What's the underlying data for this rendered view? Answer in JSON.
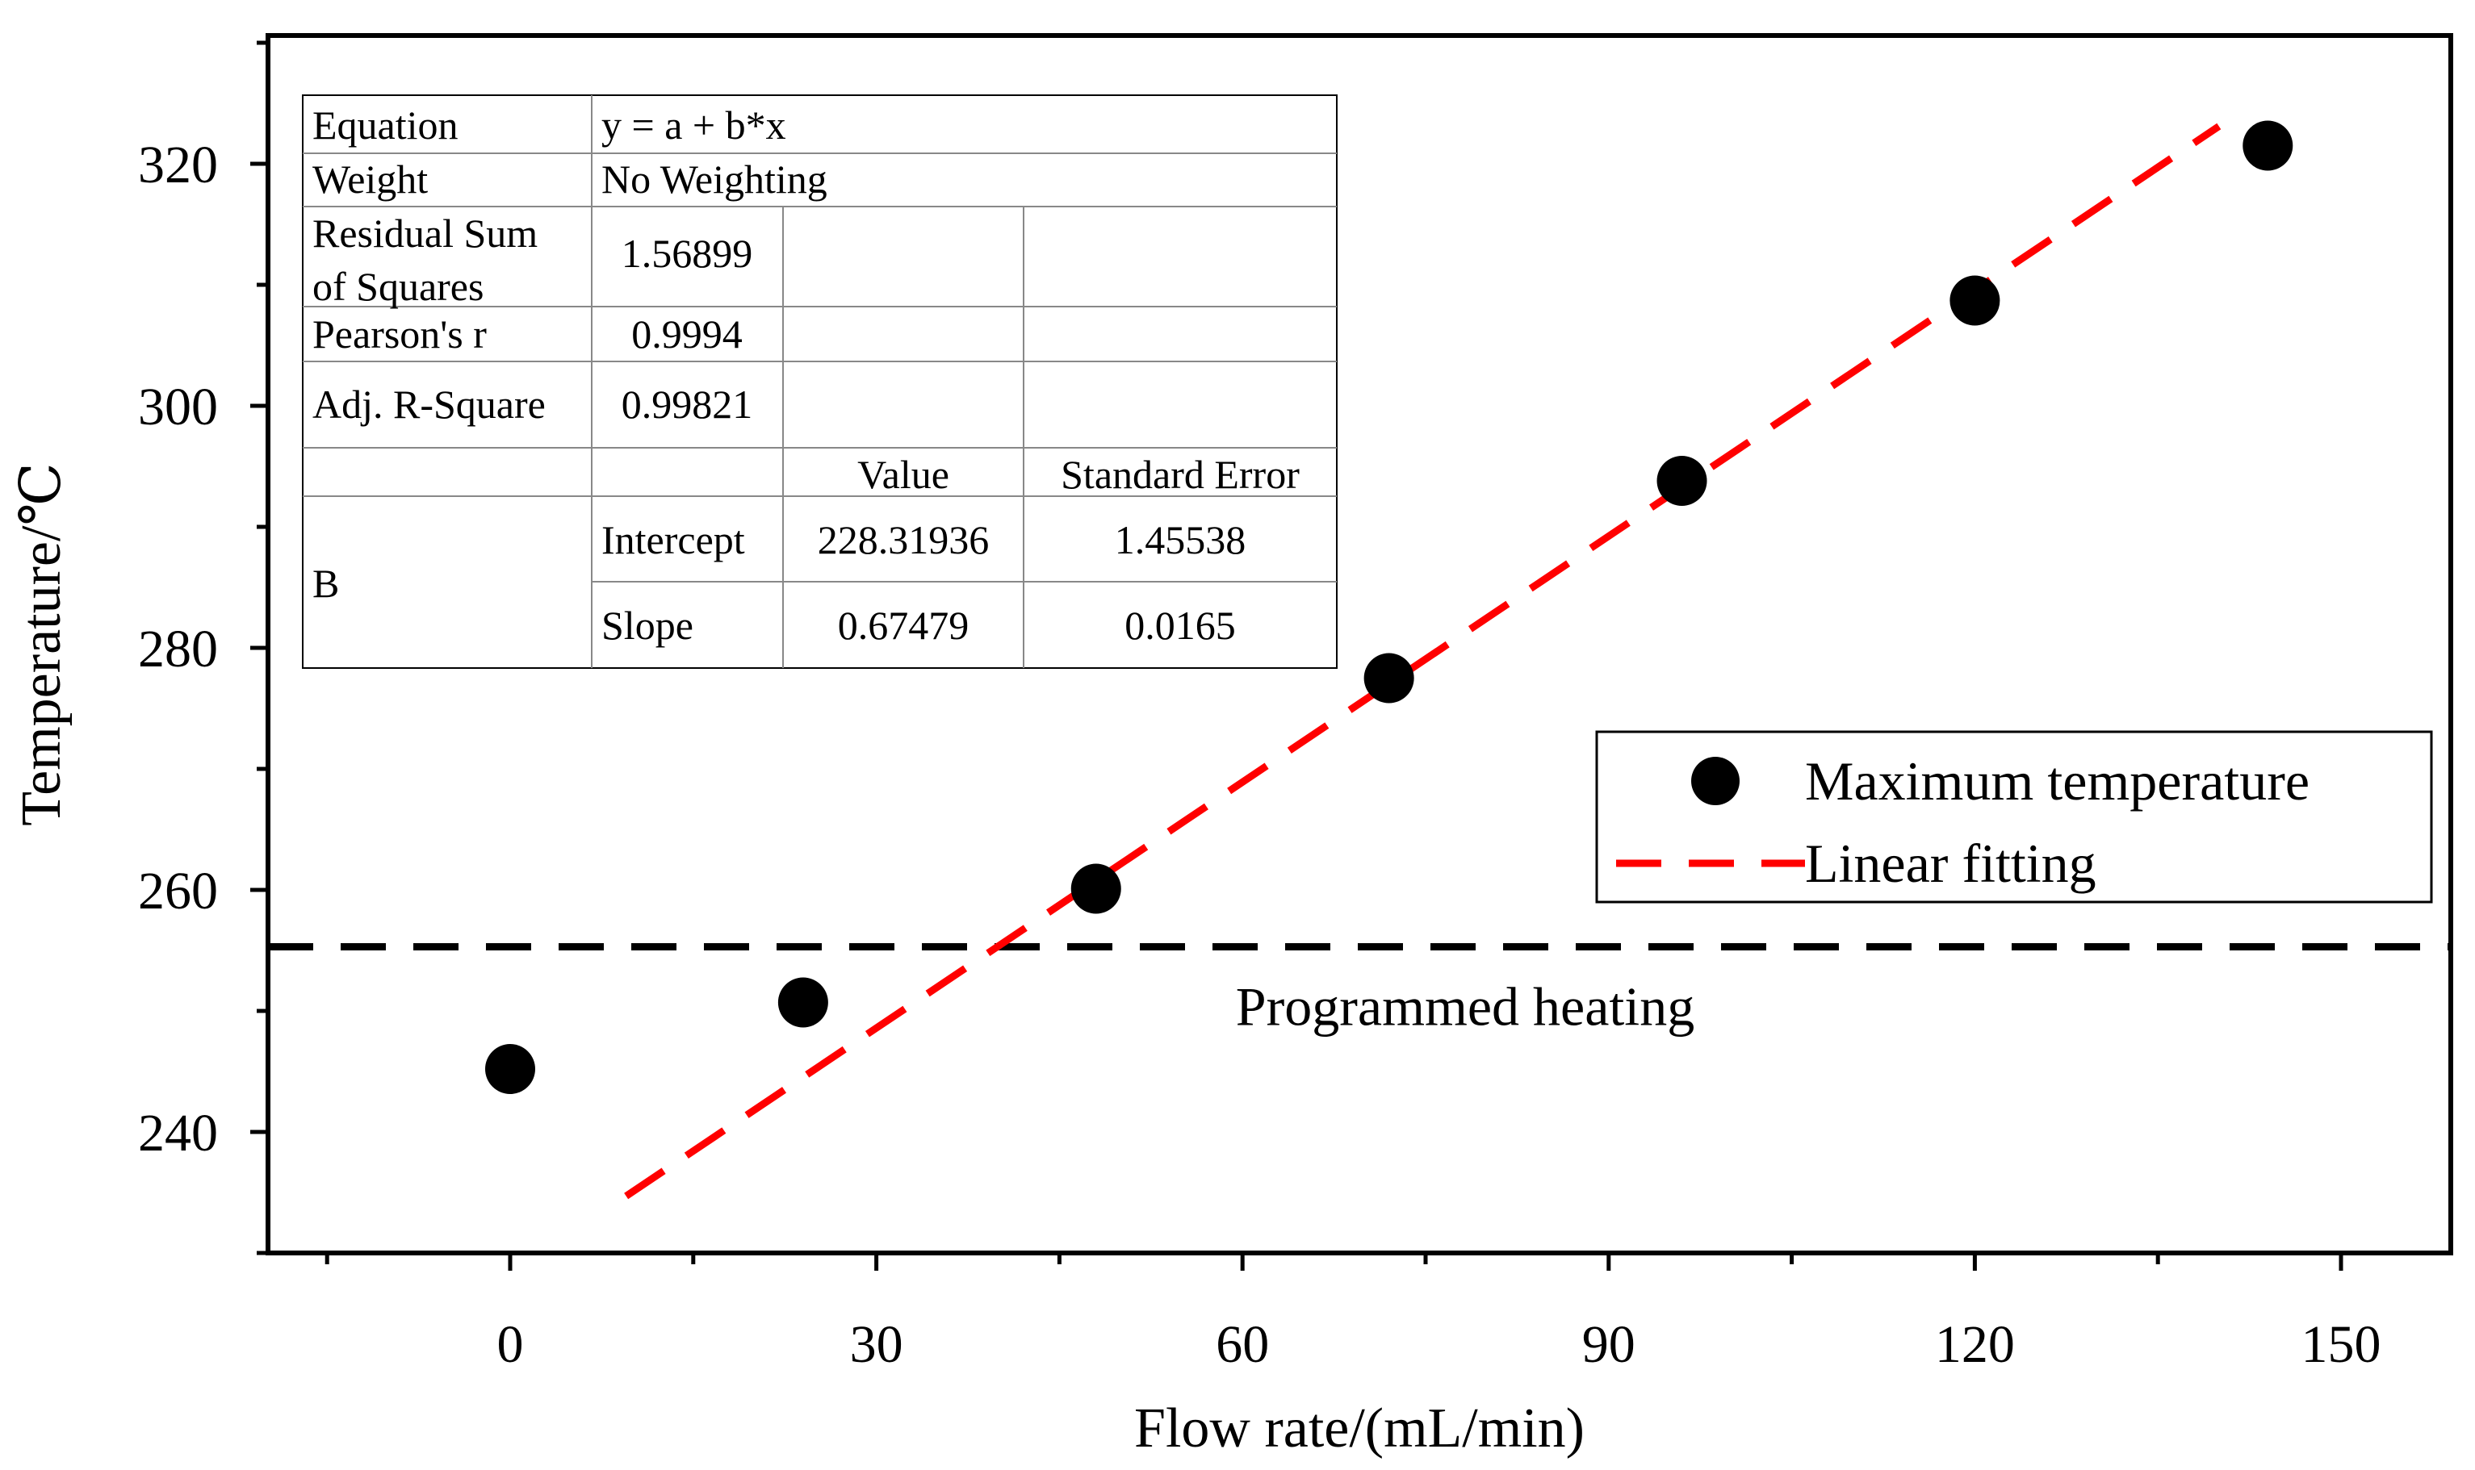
{
  "chart_data": {
    "type": "scatter",
    "title": "",
    "xlabel": "Flow rate/(mL/min)",
    "ylabel": "Temperature/℃",
    "xlim": [
      -20,
      160
    ],
    "ylim": [
      230,
      330
    ],
    "xticks": [
      0,
      30,
      60,
      90,
      120,
      150
    ],
    "xtick_labels": [
      "0",
      "30",
      "60",
      "90",
      "120",
      "150"
    ],
    "yticks": [
      240,
      260,
      280,
      300,
      320
    ],
    "ytick_labels": [
      "240",
      "260",
      "280",
      "300",
      "320"
    ],
    "grid": false,
    "legend_position": "right",
    "series": [
      {
        "name": "Maximum temperature",
        "kind": "scatter",
        "color": "#000000",
        "x": [
          0,
          24,
          48,
          72,
          96,
          120,
          144
        ],
        "y": [
          245.2,
          250.7,
          260.1,
          277.5,
          293.8,
          308.7,
          321.5
        ]
      },
      {
        "name": "Linear fitting",
        "kind": "line",
        "style": "dashed",
        "color": "#ff0000",
        "x": [
          9.5,
          140
        ],
        "y": [
          234.7,
          323.1
        ]
      }
    ],
    "reference_line": {
      "y": 255.3,
      "style": "dashed",
      "color": "#000000",
      "label": "Programmed heating"
    },
    "fit_table": {
      "rows": [
        [
          "Equation",
          "y = a + b*x"
        ],
        [
          "Weight",
          "No Weighting"
        ],
        [
          "Residual Sum of Squares",
          "1.56899"
        ],
        [
          "Pearson's r",
          "0.9994"
        ],
        [
          "Adj. R-Square",
          "0.99821"
        ]
      ],
      "header": [
        "",
        "",
        "Value",
        "Standard Error"
      ],
      "group": "B",
      "params": [
        {
          "name": "Intercept",
          "value": "228.31936",
          "error": "1.45538"
        },
        {
          "name": "Slope",
          "value": "0.67479",
          "error": "0.0165"
        }
      ]
    }
  }
}
